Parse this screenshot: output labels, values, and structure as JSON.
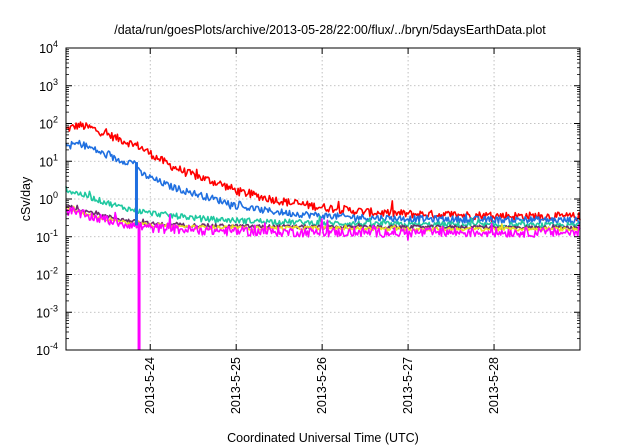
{
  "chart_data": {
    "type": "line",
    "title": "/data/run/goesPlots/archive/2013-05-28/22:00/flux/../bryn/5daysEarthData.plot",
    "xlabel": "Coordinated Universal Time (UTC)",
    "ylabel": "cSv/day",
    "yscale": "log",
    "ylim": [
      0.0001,
      10000
    ],
    "xlim": [
      0.0,
      5.98
    ],
    "y_ticks": [
      {
        "value": 0.0001,
        "mantissa": "10",
        "exp": "-4"
      },
      {
        "value": 0.001,
        "mantissa": "10",
        "exp": "-3"
      },
      {
        "value": 0.01,
        "mantissa": "10",
        "exp": "-2"
      },
      {
        "value": 0.1,
        "mantissa": "10",
        "exp": "-1"
      },
      {
        "value": 1,
        "mantissa": "10",
        "exp": "0"
      },
      {
        "value": 10,
        "mantissa": "10",
        "exp": "1"
      },
      {
        "value": 100,
        "mantissa": "10",
        "exp": "2"
      },
      {
        "value": 1000,
        "mantissa": "10",
        "exp": "3"
      },
      {
        "value": 10000,
        "mantissa": "10",
        "exp": "4"
      }
    ],
    "x_ticks": [
      {
        "value": 0.98,
        "label": "2013-5-24"
      },
      {
        "value": 1.98,
        "label": "2013-5-25"
      },
      {
        "value": 2.98,
        "label": "2013-5-26"
      },
      {
        "value": 3.98,
        "label": "2013-5-27"
      },
      {
        "value": 4.98,
        "label": "2013-5-28"
      }
    ],
    "grid": true,
    "legend": "none",
    "series": [
      {
        "color": "#ff0000",
        "noise": 0.22,
        "x": [
          0.0,
          0.15,
          0.3,
          0.45,
          0.6,
          0.75,
          0.85,
          1.0,
          1.2,
          1.4,
          1.6,
          1.8,
          2.0,
          2.3,
          2.6,
          3.0,
          3.5,
          4.0,
          4.5,
          5.0,
          5.5,
          5.98
        ],
        "y": [
          70,
          90,
          75,
          55,
          40,
          30,
          25,
          15,
          8,
          5,
          3.5,
          2.5,
          1.6,
          1.1,
          0.8,
          0.6,
          0.45,
          0.4,
          0.38,
          0.36,
          0.35,
          0.34
        ]
      },
      {
        "color": "#1f6fe0",
        "noise": 0.18,
        "x": [
          0.0,
          0.15,
          0.3,
          0.45,
          0.6,
          0.75,
          0.82,
          0.85,
          1.0,
          1.2,
          1.4,
          1.6,
          1.8,
          2.0,
          2.3,
          2.6,
          3.0,
          3.5,
          4.0,
          4.5,
          5.0,
          5.5,
          5.98
        ],
        "y": [
          25,
          30,
          22,
          15,
          11,
          9.5,
          9.5,
          5,
          3.5,
          2.2,
          1.6,
          1.2,
          0.9,
          0.65,
          0.5,
          0.42,
          0.36,
          0.32,
          0.3,
          0.29,
          0.28,
          0.28,
          0.27
        ]
      },
      {
        "color": "#20c8a0",
        "noise": 0.15,
        "x": [
          0.0,
          0.2,
          0.4,
          0.6,
          0.8,
          1.0,
          1.3,
          1.6,
          2.0,
          2.5,
          3.0,
          3.5,
          4.0,
          4.5,
          5.0,
          5.5,
          5.98
        ],
        "y": [
          1.7,
          1.3,
          0.9,
          0.65,
          0.5,
          0.42,
          0.35,
          0.3,
          0.27,
          0.25,
          0.23,
          0.22,
          0.21,
          0.21,
          0.2,
          0.2,
          0.2
        ]
      },
      {
        "color": "#6a2c6a",
        "noise": 0.1,
        "x": [
          0.0,
          0.2,
          0.4,
          0.6,
          0.8,
          1.0,
          1.5,
          2.0,
          3.0,
          4.0,
          5.0,
          5.98
        ],
        "y": [
          0.65,
          0.5,
          0.38,
          0.3,
          0.25,
          0.22,
          0.2,
          0.19,
          0.18,
          0.18,
          0.18,
          0.17
        ]
      },
      {
        "color": "#e8e020",
        "noise": 0.1,
        "x": [
          0.0,
          0.2,
          0.4,
          0.6,
          0.8,
          1.0,
          1.5,
          2.0,
          3.0,
          4.0,
          5.0,
          5.98
        ],
        "y": [
          0.55,
          0.42,
          0.32,
          0.26,
          0.22,
          0.2,
          0.18,
          0.17,
          0.17,
          0.16,
          0.16,
          0.16
        ]
      },
      {
        "color": "#ff00ff",
        "noise": 0.25,
        "x": [
          0.0,
          0.2,
          0.4,
          0.6,
          0.8,
          0.85,
          1.0,
          1.5,
          2.0,
          3.0,
          4.0,
          5.0,
          5.98
        ],
        "y": [
          0.5,
          0.38,
          0.3,
          0.24,
          0.2,
          0.19,
          0.17,
          0.15,
          0.14,
          0.13,
          0.13,
          0.13,
          0.13
        ]
      }
    ],
    "drops": [
      {
        "color": "#1f6fe0",
        "x": 0.82,
        "y_from": 9.5,
        "y_to": 0.2
      },
      {
        "color": "#ff00ff",
        "x": 0.85,
        "y_from": 0.19,
        "y_to": 0.0001
      }
    ]
  }
}
